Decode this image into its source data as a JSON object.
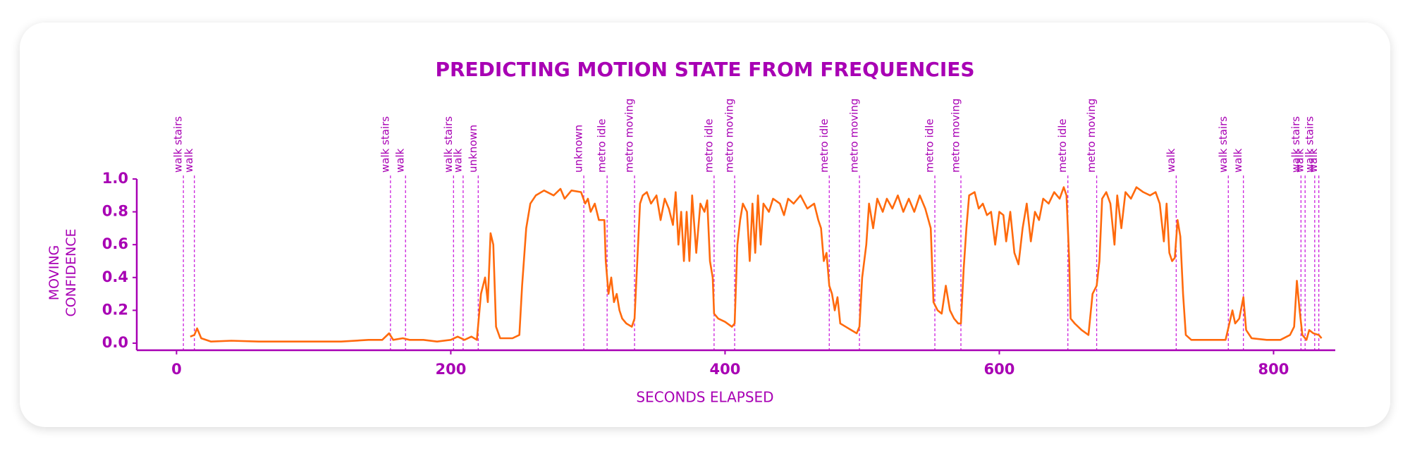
{
  "chart_data": {
    "type": "line",
    "title": "PREDICTING MOTION STATE FROM FREQUENCIES",
    "xlabel": "SECONDS ELAPSED",
    "ylabel": "MOVING CONFIDENCE",
    "xlim": [
      -29,
      845
    ],
    "ylim": [
      -0.043,
      1.0
    ],
    "xticks": [
      0,
      200,
      400,
      600,
      800
    ],
    "yticks": [
      {
        "value": 0,
        "label": "0.0"
      },
      0.2,
      0.4,
      0.6,
      0.8,
      {
        "value": 1,
        "label": "1.0"
      }
    ],
    "grid": false,
    "series": [
      {
        "color": "#ff6a0d",
        "x": [
          10,
          13,
          15,
          18,
          25,
          40,
          60,
          80,
          100,
          120,
          140,
          150,
          155,
          158,
          165,
          170,
          180,
          190,
          200,
          205,
          210,
          215,
          219,
          222,
          225,
          227,
          229,
          231,
          233,
          236,
          245,
          250,
          252,
          255,
          258,
          262,
          268,
          275,
          280,
          283,
          288,
          295,
          298,
          300,
          302,
          305,
          308,
          312,
          313,
          315,
          317,
          319,
          321,
          323,
          325,
          328,
          332,
          334,
          336,
          338,
          340,
          343,
          346,
          350,
          353,
          356,
          359,
          362,
          364,
          366,
          368,
          370,
          372,
          374,
          376,
          379,
          382,
          385,
          387,
          389,
          391,
          392,
          395,
          400,
          405,
          407,
          409,
          411,
          413,
          416,
          418,
          420,
          422,
          424,
          426,
          428,
          432,
          435,
          440,
          443,
          446,
          450,
          455,
          460,
          465,
          468,
          470,
          472,
          474,
          476,
          478,
          480,
          482,
          484,
          488,
          492,
          496,
          498,
          500,
          503,
          505,
          508,
          511,
          515,
          518,
          522,
          526,
          530,
          534,
          538,
          542,
          546,
          550,
          552,
          555,
          558,
          561,
          564,
          567,
          570,
          572,
          574,
          576,
          578,
          582,
          585,
          588,
          591,
          594,
          597,
          600,
          603,
          605,
          608,
          611,
          614,
          617,
          620,
          623,
          626,
          629,
          632,
          636,
          640,
          644,
          647,
          649,
          651,
          652,
          655,
          660,
          665,
          668,
          671,
          673,
          675,
          678,
          681,
          684,
          686,
          689,
          692,
          696,
          700,
          705,
          710,
          714,
          717,
          720,
          722,
          724,
          726,
          728,
          730,
          732,
          734,
          736,
          740,
          750,
          760,
          765,
          770,
          772,
          775,
          778,
          780,
          784,
          795,
          805,
          812,
          815,
          817,
          819,
          821,
          824,
          826,
          829,
          833,
          835
        ],
        "values": [
          0.04,
          0.05,
          0.09,
          0.03,
          0.01,
          0.015,
          0.01,
          0.01,
          0.01,
          0.01,
          0.02,
          0.02,
          0.06,
          0.02,
          0.03,
          0.02,
          0.02,
          0.01,
          0.02,
          0.04,
          0.02,
          0.04,
          0.02,
          0.3,
          0.4,
          0.25,
          0.67,
          0.6,
          0.1,
          0.03,
          0.03,
          0.05,
          0.35,
          0.7,
          0.85,
          0.9,
          0.93,
          0.9,
          0.94,
          0.88,
          0.93,
          0.92,
          0.85,
          0.88,
          0.8,
          0.85,
          0.75,
          0.75,
          0.5,
          0.3,
          0.4,
          0.25,
          0.3,
          0.2,
          0.15,
          0.12,
          0.1,
          0.15,
          0.5,
          0.85,
          0.9,
          0.92,
          0.85,
          0.9,
          0.75,
          0.88,
          0.82,
          0.72,
          0.92,
          0.6,
          0.8,
          0.5,
          0.8,
          0.5,
          0.9,
          0.55,
          0.85,
          0.8,
          0.87,
          0.5,
          0.4,
          0.18,
          0.15,
          0.13,
          0.1,
          0.12,
          0.6,
          0.75,
          0.85,
          0.8,
          0.5,
          0.85,
          0.55,
          0.9,
          0.6,
          0.85,
          0.8,
          0.88,
          0.85,
          0.78,
          0.88,
          0.85,
          0.9,
          0.82,
          0.85,
          0.75,
          0.7,
          0.5,
          0.55,
          0.35,
          0.3,
          0.2,
          0.28,
          0.12,
          0.1,
          0.08,
          0.06,
          0.1,
          0.4,
          0.6,
          0.85,
          0.7,
          0.88,
          0.8,
          0.88,
          0.82,
          0.9,
          0.8,
          0.88,
          0.8,
          0.9,
          0.82,
          0.7,
          0.25,
          0.2,
          0.18,
          0.35,
          0.2,
          0.15,
          0.12,
          0.12,
          0.45,
          0.7,
          0.9,
          0.92,
          0.82,
          0.85,
          0.78,
          0.8,
          0.6,
          0.8,
          0.78,
          0.62,
          0.8,
          0.55,
          0.48,
          0.7,
          0.85,
          0.62,
          0.8,
          0.75,
          0.88,
          0.85,
          0.92,
          0.88,
          0.95,
          0.9,
          0.5,
          0.15,
          0.12,
          0.08,
          0.05,
          0.3,
          0.35,
          0.5,
          0.88,
          0.92,
          0.85,
          0.6,
          0.9,
          0.7,
          0.92,
          0.88,
          0.95,
          0.92,
          0.9,
          0.92,
          0.85,
          0.62,
          0.85,
          0.55,
          0.5,
          0.52,
          0.75,
          0.65,
          0.3,
          0.05,
          0.02,
          0.02,
          0.02,
          0.02,
          0.2,
          0.12,
          0.15,
          0.28,
          0.08,
          0.03,
          0.02,
          0.02,
          0.05,
          0.1,
          0.38,
          0.2,
          0.05,
          0.02,
          0.08,
          0.06,
          0.05,
          0.03
        ]
      }
    ],
    "annotations": [
      {
        "x": 5,
        "label": "walk stairs"
      },
      {
        "x": 13,
        "label": "walk"
      },
      {
        "x": 156,
        "label": "walk stairs"
      },
      {
        "x": 167,
        "label": "walk"
      },
      {
        "x": 202,
        "label": "walk stairs"
      },
      {
        "x": 209,
        "label": "walk"
      },
      {
        "x": 220,
        "label": "unknown"
      },
      {
        "x": 297,
        "label": "unknown"
      },
      {
        "x": 314,
        "label": "metro idle"
      },
      {
        "x": 334,
        "label": "metro moving"
      },
      {
        "x": 392,
        "label": "metro idle"
      },
      {
        "x": 407,
        "label": "metro moving"
      },
      {
        "x": 476,
        "label": "metro idle"
      },
      {
        "x": 498,
        "label": "metro moving"
      },
      {
        "x": 553,
        "label": "metro idle"
      },
      {
        "x": 572,
        "label": "metro moving"
      },
      {
        "x": 650,
        "label": "metro idle"
      },
      {
        "x": 671,
        "label": "metro moving"
      },
      {
        "x": 729,
        "label": "walk"
      },
      {
        "x": 767,
        "label": "walk stairs"
      },
      {
        "x": 778,
        "label": "walk"
      },
      {
        "x": 820,
        "label": "walk stairs"
      },
      {
        "x": 823,
        "label": "walk"
      },
      {
        "x": 830,
        "label": "walk stairs"
      },
      {
        "x": 833,
        "label": "walk"
      }
    ]
  }
}
